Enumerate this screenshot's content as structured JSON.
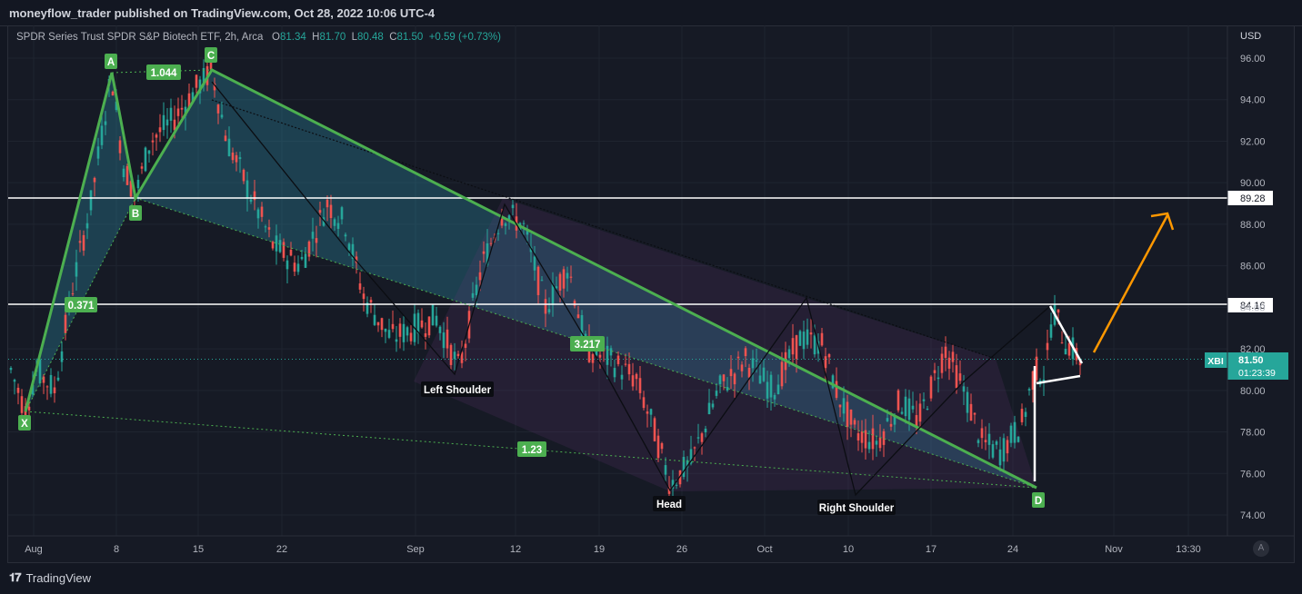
{
  "header": {
    "publish_line": "moneyflow_trader published on TradingView.com, Oct 28, 2022 10:06 UTC-4"
  },
  "legend": {
    "symbol_desc": "SPDR Series Trust SPDR S&P Biotech ETF, 2h, Arca",
    "open_label": "O",
    "open": "81.34",
    "high_label": "H",
    "high": "81.70",
    "low_label": "L",
    "low": "80.48",
    "close_label": "C",
    "close": "81.50",
    "change": "+0.59 (+0.73%)"
  },
  "price_axis": {
    "currency": "USD",
    "ticks": [
      "96.00",
      "94.00",
      "92.00",
      "90.00",
      "88.00",
      "86.00",
      "84.00",
      "82.00",
      "80.00",
      "78.00",
      "76.00",
      "74.00"
    ]
  },
  "time_axis": {
    "ticks": [
      "Aug",
      "8",
      "15",
      "22",
      "Sep",
      "12",
      "19",
      "26",
      "Oct",
      "10",
      "17",
      "24",
      "Nov",
      "13:30"
    ]
  },
  "price_tags": {
    "level_high": "89.28",
    "level_mid": "84.16",
    "symbol": "XBI",
    "last_price": "81.50",
    "countdown": "01:23:39"
  },
  "pattern_labels": {
    "X": "X",
    "A": "A",
    "B": "B",
    "C": "C",
    "D": "D",
    "ratio_xb": "0.371",
    "ratio_ac": "1.044",
    "ratio_bd": "3.217",
    "ratio_xd": "1.23",
    "left_shoulder": "Left Shoulder",
    "head": "Head",
    "right_shoulder": "Right Shoulder"
  },
  "footer": {
    "brand": "TradingView",
    "auto_label": "A"
  },
  "colors": {
    "bg": "#161a25",
    "up": "#26a69a",
    "down": "#ef5350",
    "pattern": "#4caf50",
    "fill_blue": "#2a8aa0",
    "fill_purple": "#6b3a7a",
    "arrow": "#ff9800",
    "xbi_tag": "#26a69a"
  },
  "chart_data": {
    "type": "candlestick",
    "symbol": "XBI",
    "interval": "2h",
    "ylim": [
      73.5,
      97.5
    ],
    "x_ticks": [
      "Aug",
      "8",
      "15",
      "22",
      "Sep",
      "12",
      "19",
      "26",
      "Oct",
      "10",
      "17",
      "24",
      "Nov",
      "13:30"
    ],
    "horizontal_levels": [
      89.28,
      84.16
    ],
    "last_price": 81.5,
    "xabcd": [
      {
        "point": "X",
        "date": "Aug 1",
        "price": 79.0
      },
      {
        "point": "A",
        "date": "Aug 8",
        "price": 95.3
      },
      {
        "point": "B",
        "date": "Aug 9",
        "price": 89.3
      },
      {
        "point": "C",
        "date": "Aug 16",
        "price": 95.5
      },
      {
        "point": "D",
        "date": "Oct 26",
        "price": 75.4
      }
    ],
    "head_and_shoulders": [
      {
        "point": "Left Shoulder",
        "date": "Sep 5",
        "price": 80.7
      },
      {
        "point": "Head",
        "date": "Sep 25",
        "price": 75.2
      },
      {
        "point": "Right Shoulder",
        "date": "Oct 11",
        "price": 75.0
      }
    ],
    "ratios": {
      "XB": 0.371,
      "AC": 1.044,
      "BD": 3.217,
      "XD": 1.23
    },
    "candles_note": "",
    "candles": []
  }
}
